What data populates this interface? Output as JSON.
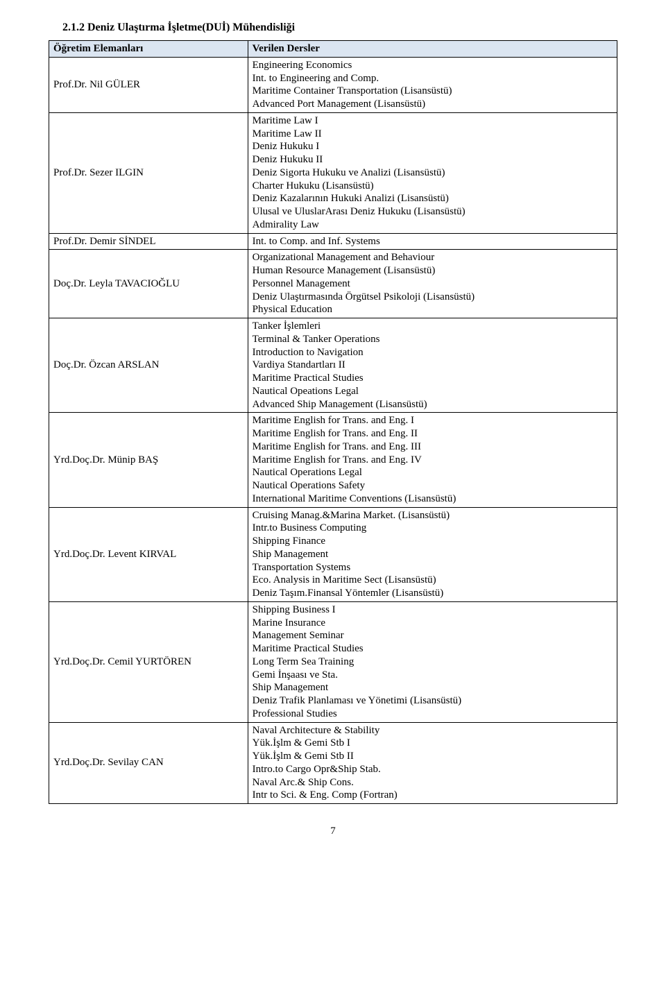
{
  "heading": "2.1.2 Deniz Ulaştırma İşletme(DUİ) Mühendisliği",
  "headers": {
    "left": "Öğretim Elemanları",
    "right": "Verilen Dersler"
  },
  "header_bg": "#dbe5f1",
  "border_color": "#000000",
  "rows": [
    {
      "name": "Prof.Dr. Nil GÜLER",
      "courses": [
        "Engineering Economics",
        "Int. to Engineering and Comp.",
        "Maritime Container Transportation (Lisansüstü)",
        "Advanced Port Management (Lisansüstü)"
      ]
    },
    {
      "name": "Prof.Dr. Sezer ILGIN",
      "courses": [
        "Maritime Law I",
        "Maritime Law II",
        "Deniz Hukuku I",
        "Deniz Hukuku II",
        "Deniz Sigorta Hukuku ve Analizi (Lisansüstü)",
        "Charter Hukuku (Lisansüstü)",
        "Deniz Kazalarının Hukuki Analizi (Lisansüstü)",
        "Ulusal ve UluslarArası Deniz Hukuku (Lisansüstü)",
        "Admirality Law"
      ]
    },
    {
      "name": "Prof.Dr. Demir SİNDEL",
      "courses": [
        "Int. to Comp. and Inf. Systems"
      ]
    },
    {
      "name": "Doç.Dr. Leyla TAVACIOĞLU",
      "courses": [
        "Organizational Management and Behaviour",
        "Human Resource Management (Lisansüstü)",
        "Personnel Management",
        "Deniz Ulaştırmasında Örgütsel Psikoloji (Lisansüstü)",
        "Physical Education"
      ]
    },
    {
      "name": "Doç.Dr. Özcan ARSLAN",
      "courses": [
        "Tanker İşlemleri",
        "Terminal & Tanker Operations",
        "Introduction to Navigation",
        "Vardiya Standartları II",
        "Maritime Practical Studies",
        "Nautical Opeations Legal",
        "Advanced Ship Management (Lisansüstü)"
      ]
    },
    {
      "name": "Yrd.Doç.Dr. Münip BAŞ",
      "courses": [
        "Maritime English for Trans. and Eng. I",
        "Maritime English for Trans. and Eng. II",
        "Maritime English for Trans. and Eng. III",
        "Maritime English for Trans. and Eng. IV",
        "Nautical Operations Legal",
        "Nautical Operations Safety",
        "International Maritime Conventions (Lisansüstü)"
      ]
    },
    {
      "name": "Yrd.Doç.Dr. Levent KIRVAL",
      "courses": [
        "Cruising Manag.&Marina Market. (Lisansüstü)",
        "Intr.to Business Computing",
        "Shipping Finance",
        "Ship Management",
        "Transportation Systems",
        "Eco. Analysis in Maritime Sect (Lisansüstü)",
        "Deniz Taşım.Finansal Yöntemler (Lisansüstü)"
      ]
    },
    {
      "name": "Yrd.Doç.Dr. Cemil YURTÖREN",
      "courses": [
        "Shipping Business I",
        "Marine Insurance",
        "Management Seminar",
        "Maritime Practical Studies",
        "Long Term Sea Training",
        "Gemi İnşaası ve Sta.",
        "Ship Management",
        "Deniz Trafik Planlaması ve Yönetimi (Lisansüstü)",
        "Professional Studies"
      ]
    },
    {
      "name": "Yrd.Doç.Dr. Sevilay CAN",
      "courses": [
        "Naval Architecture & Stability",
        "Yük.İşlm & Gemi Stb I",
        "Yük.İşlm & Gemi Stb II",
        "Intro.to Cargo Opr&Ship Stab.",
        "Naval Arc.& Ship Cons.",
        "Intr to Sci. & Eng. Comp (Fortran)"
      ]
    }
  ],
  "page_number": "7"
}
